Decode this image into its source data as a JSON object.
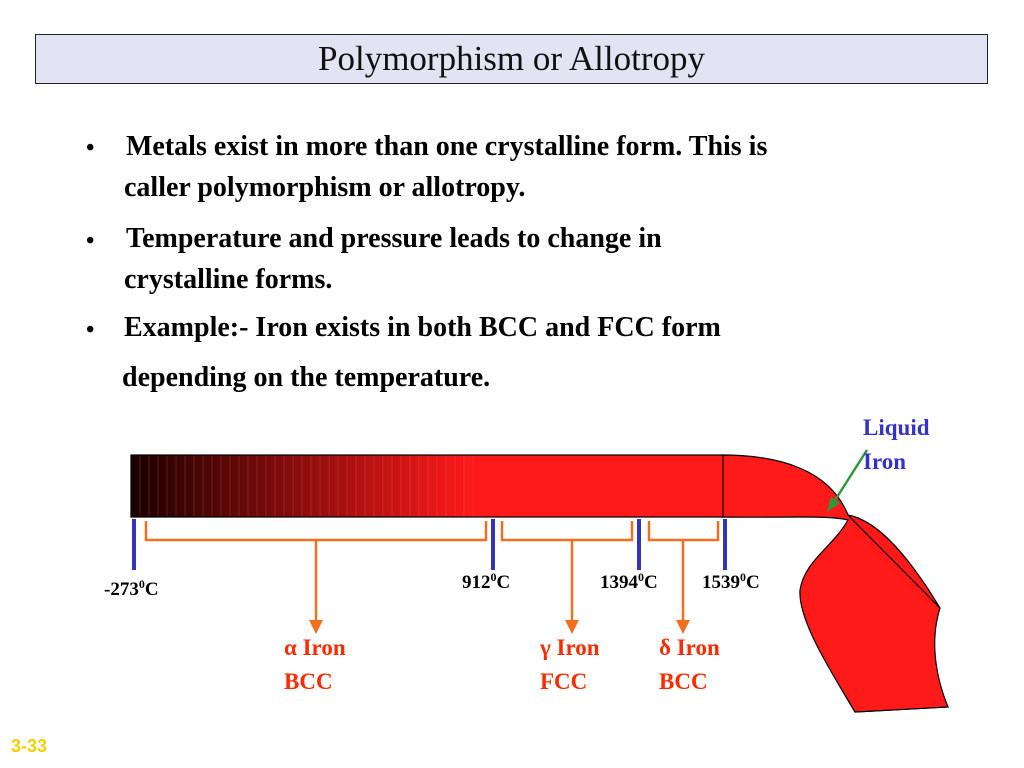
{
  "title": "Polymorphism or Allotropy",
  "bullets": [
    {
      "line1": " Metals exist in more than one crystalline form. This is",
      "line2": "caller polymorphism or allotropy."
    },
    {
      "line1": " Temperature and pressure leads to change in",
      "line2": "crystalline forms."
    },
    {
      "line1": "Example:-  Iron exists in both BCC and FCC form",
      "line2": "depending on the temperature."
    }
  ],
  "bullet_symbol": "•",
  "diagram": {
    "liquid_label": {
      "line1": "Liquid",
      "line2": "Iron"
    },
    "temperatures": [
      {
        "base": "-273",
        "sup": "0",
        "unit": "C"
      },
      {
        "base": "912",
        "sup": "0",
        "unit": "C"
      },
      {
        "base": "1394",
        "sup": "0",
        "unit": "C"
      },
      {
        "base": "1539",
        "sup": "0",
        "unit": "C"
      }
    ],
    "phases": [
      {
        "symbol": "α",
        "name": "Iron",
        "structure": "BCC"
      },
      {
        "symbol": "γ",
        "name": "Iron",
        "structure": "FCC"
      },
      {
        "symbol": "δ",
        "name": "Iron",
        "structure": "BCC"
      }
    ],
    "colors": {
      "bar_red": "#ff1a1a",
      "bar_dark": "#1a0000",
      "tick_blue": "#3333bb",
      "bracket_orange": "#f07020",
      "phase_text": "#ff2a00",
      "liquid_text": "#3333cc",
      "liquid_arrow": "#2e9a3a"
    }
  },
  "slide_number": "3-33"
}
